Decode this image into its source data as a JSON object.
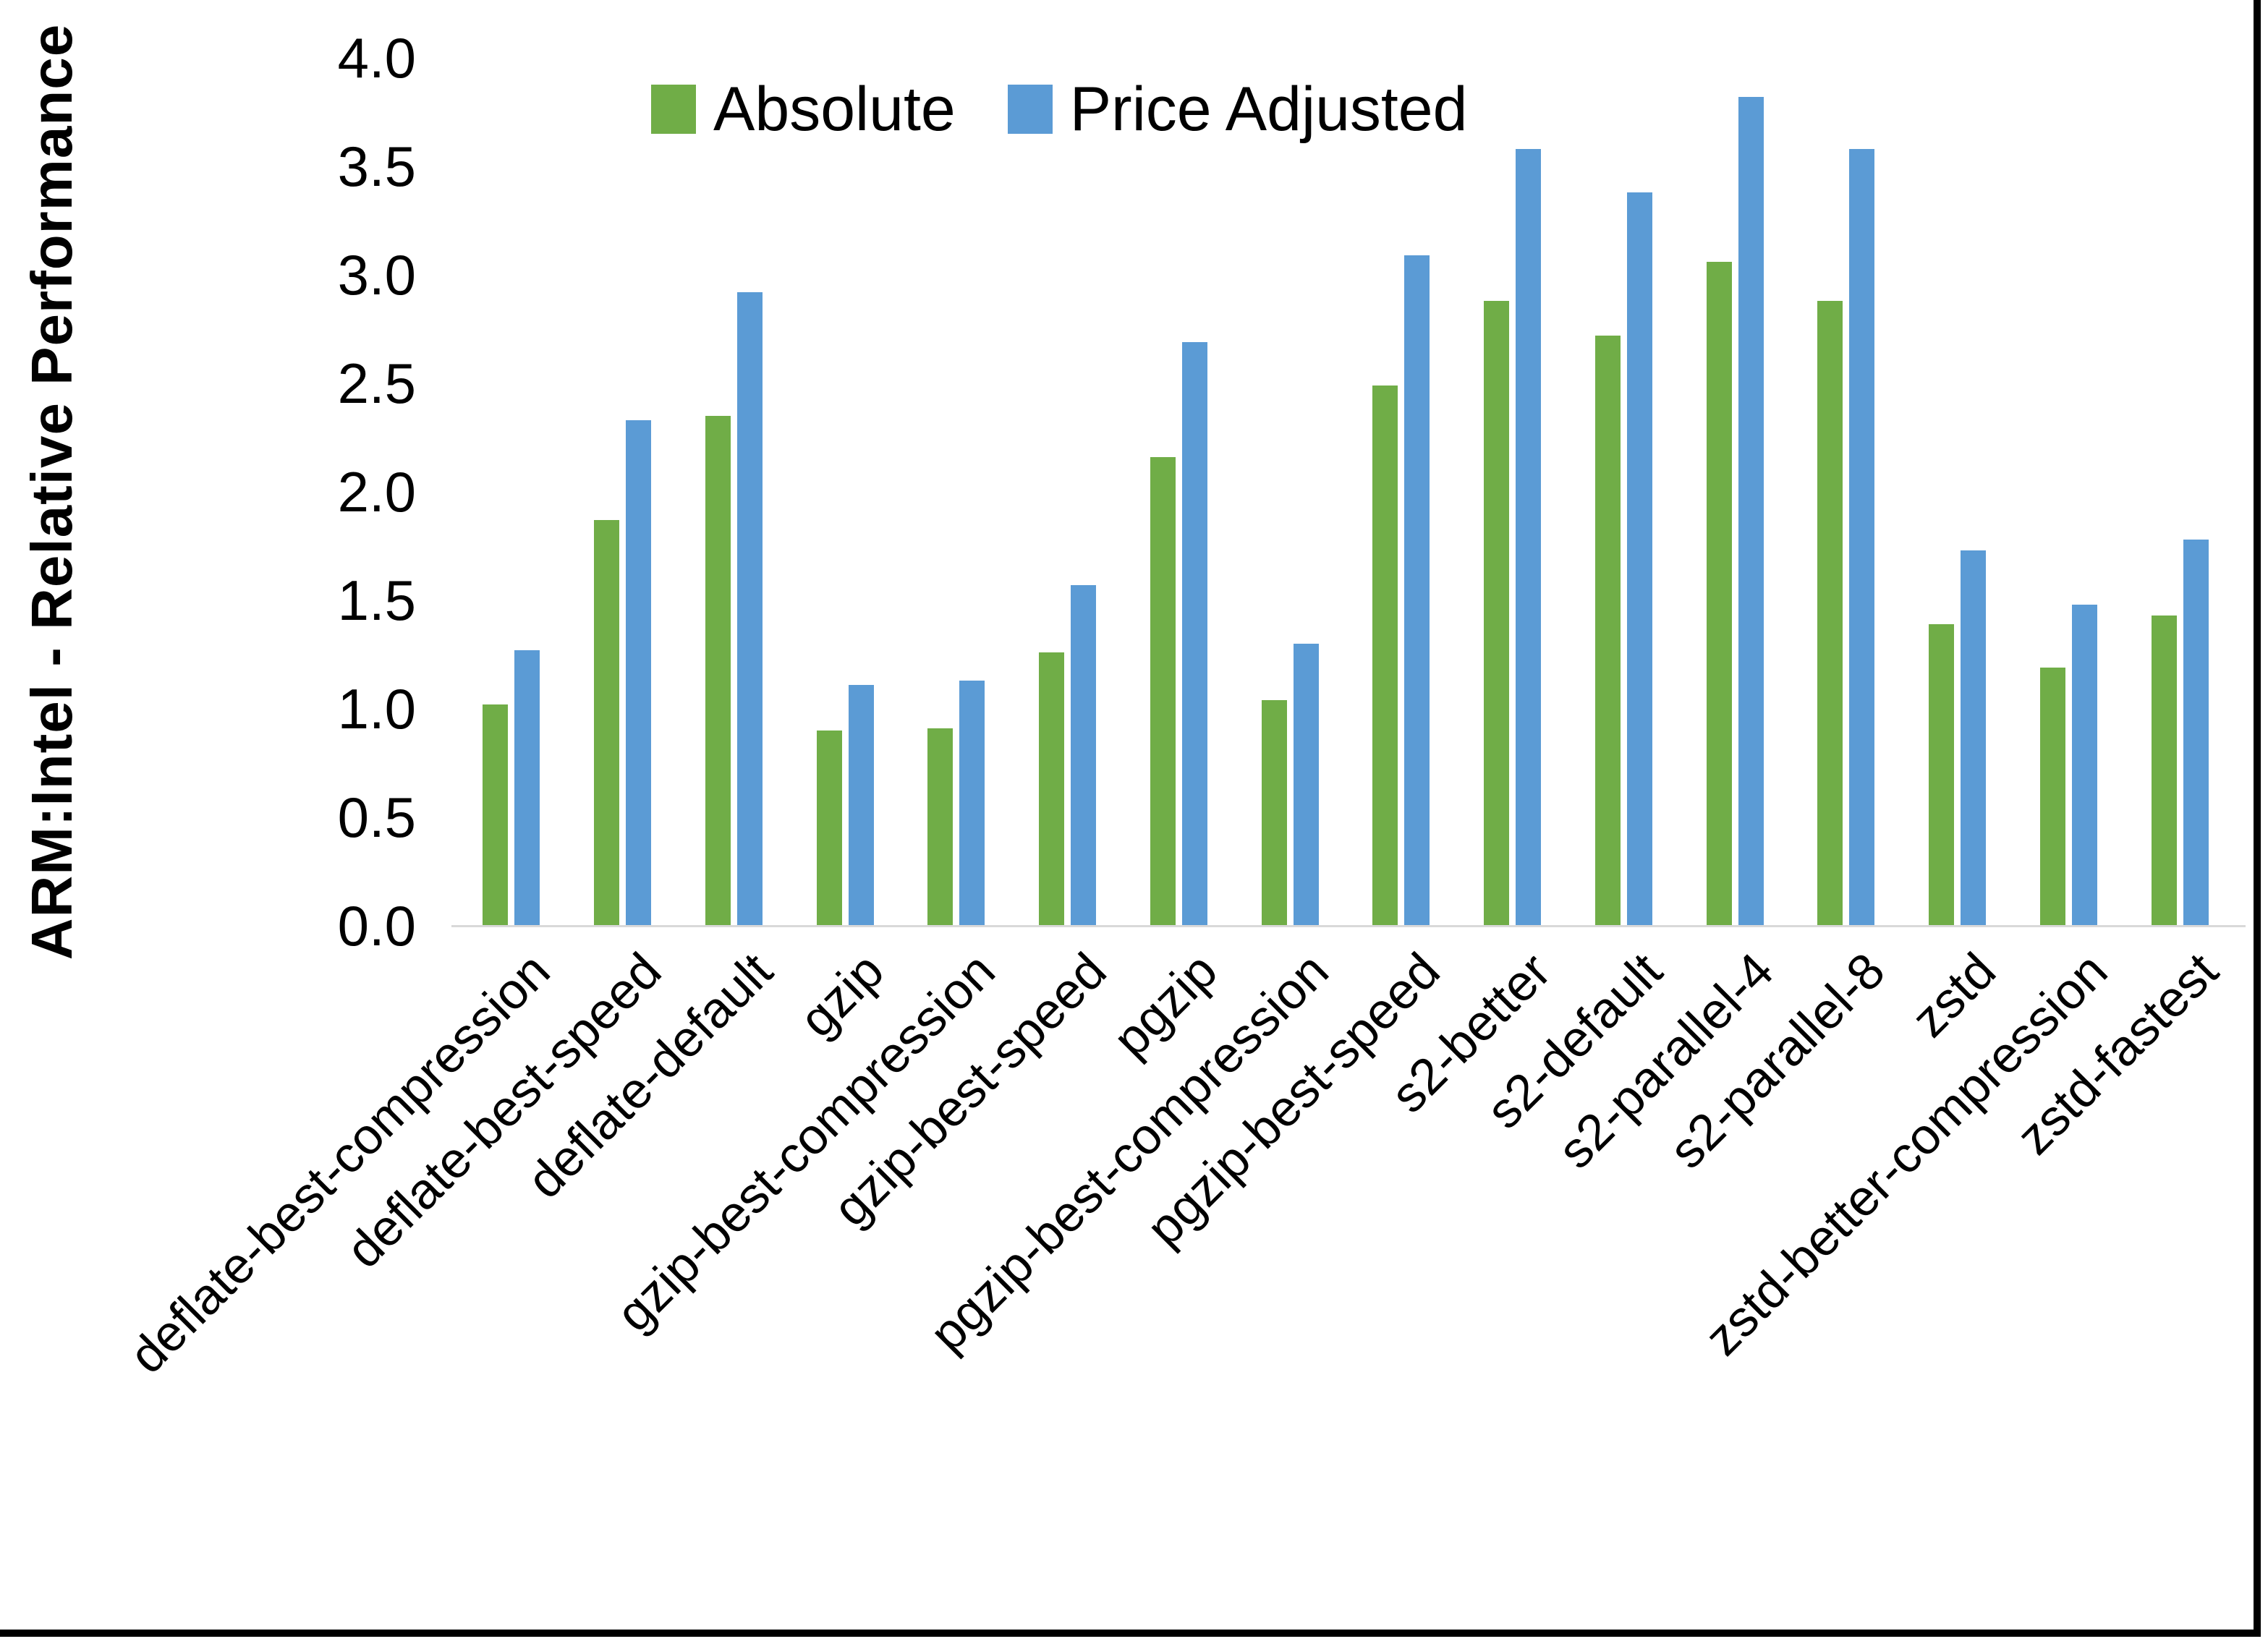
{
  "chart_data": {
    "type": "bar",
    "title": "",
    "y_axis_title": "ARM:Intel - Relative Performance",
    "categories": [
      "deflate-best-compression",
      "deflate-best-speed",
      "deflate-default",
      "gzip",
      "gzip-best-compression",
      "gzip-best-speed",
      "pgzip",
      "pgzip-best-compression",
      "pgzip-best-speed",
      "s2-better",
      "s2-default",
      "s2-parallel-4",
      "s2-parallel-8",
      "zstd",
      "zstd-better-compression",
      "zstd-fastest"
    ],
    "series": [
      {
        "name": "Absolute",
        "color": "#70AD47",
        "values": [
          1.02,
          1.87,
          2.35,
          0.9,
          0.91,
          1.26,
          2.16,
          1.04,
          2.49,
          2.88,
          2.72,
          3.06,
          2.88,
          1.39,
          1.19,
          1.43
        ]
      },
      {
        "name": "Price Adjusted",
        "color": "#5B9BD5",
        "values": [
          1.27,
          2.33,
          2.92,
          1.11,
          1.13,
          1.57,
          2.69,
          1.3,
          3.09,
          3.58,
          3.38,
          3.82,
          3.58,
          1.73,
          1.48,
          1.78
        ]
      }
    ],
    "ylim": [
      0.0,
      4.0
    ],
    "y_tick_labels": [
      "0.0",
      "0.5",
      "1.0",
      "1.5",
      "2.0",
      "2.5",
      "3.0",
      "3.5",
      "4.0"
    ],
    "xlabel": "",
    "ylabel": "ARM:Intel - Relative Performance",
    "grid": "off",
    "legend_position": "top-center",
    "axis_line_color": "#D9D9D9"
  }
}
